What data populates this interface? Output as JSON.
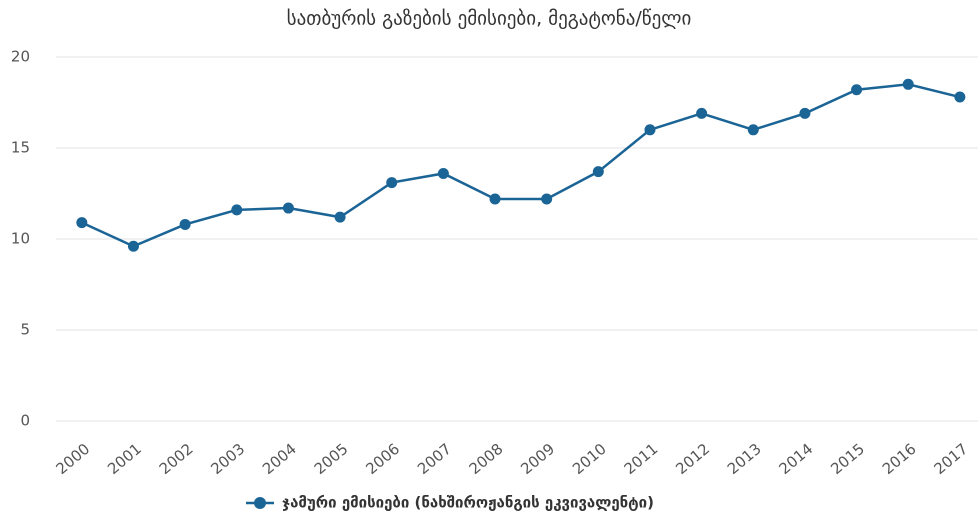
{
  "chart_data": {
    "type": "line",
    "title": "სათბურის გაზების ემისიები, მეგატონა/წელი",
    "categories": [
      "2000",
      "2001",
      "2002",
      "2003",
      "2004",
      "2005",
      "2006",
      "2007",
      "2008",
      "2009",
      "2010",
      "2011",
      "2012",
      "2013",
      "2014",
      "2015",
      "2016",
      "2017"
    ],
    "series": [
      {
        "name": "ჯამური ემისიები (ნახშიროჟანგის ეკვივალენტი)",
        "color": "#1b6496",
        "values": [
          10.9,
          9.6,
          10.8,
          11.6,
          11.7,
          11.2,
          13.1,
          13.6,
          12.2,
          12.2,
          13.7,
          16.0,
          16.9,
          16.0,
          16.9,
          18.2,
          18.5,
          17.8
        ]
      }
    ],
    "ylim": [
      0,
      20
    ],
    "yticks": [
      0,
      5,
      10,
      15,
      20
    ],
    "grid": true,
    "legend": "bottom"
  }
}
